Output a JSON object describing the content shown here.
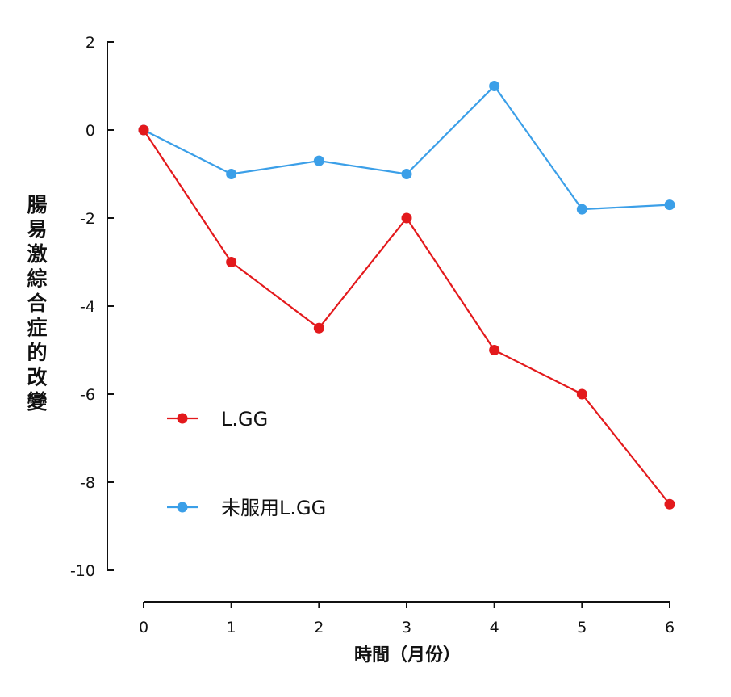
{
  "chart_data": {
    "type": "line",
    "x": [
      0,
      1,
      2,
      3,
      4,
      5,
      6
    ],
    "xlabel": "時間（月份）",
    "ylabel": "腸易激綜合症的改變",
    "ylim": [
      -10,
      2
    ],
    "yticks": [
      2,
      0,
      -2,
      -4,
      -6,
      -8,
      -10
    ],
    "xticks": [
      0,
      1,
      2,
      3,
      4,
      5,
      6
    ],
    "grid": false,
    "legend_position": "center-left",
    "series": [
      {
        "name": "L.GG",
        "color": "#e3191c",
        "values": [
          0,
          -3,
          -4.5,
          -2,
          -5,
          -6,
          -8.5
        ]
      },
      {
        "name": "未服用L.GG",
        "color": "#3b9fe8",
        "values": [
          0,
          -1,
          -0.7,
          -1,
          1,
          -1.8,
          -1.7
        ]
      }
    ]
  }
}
